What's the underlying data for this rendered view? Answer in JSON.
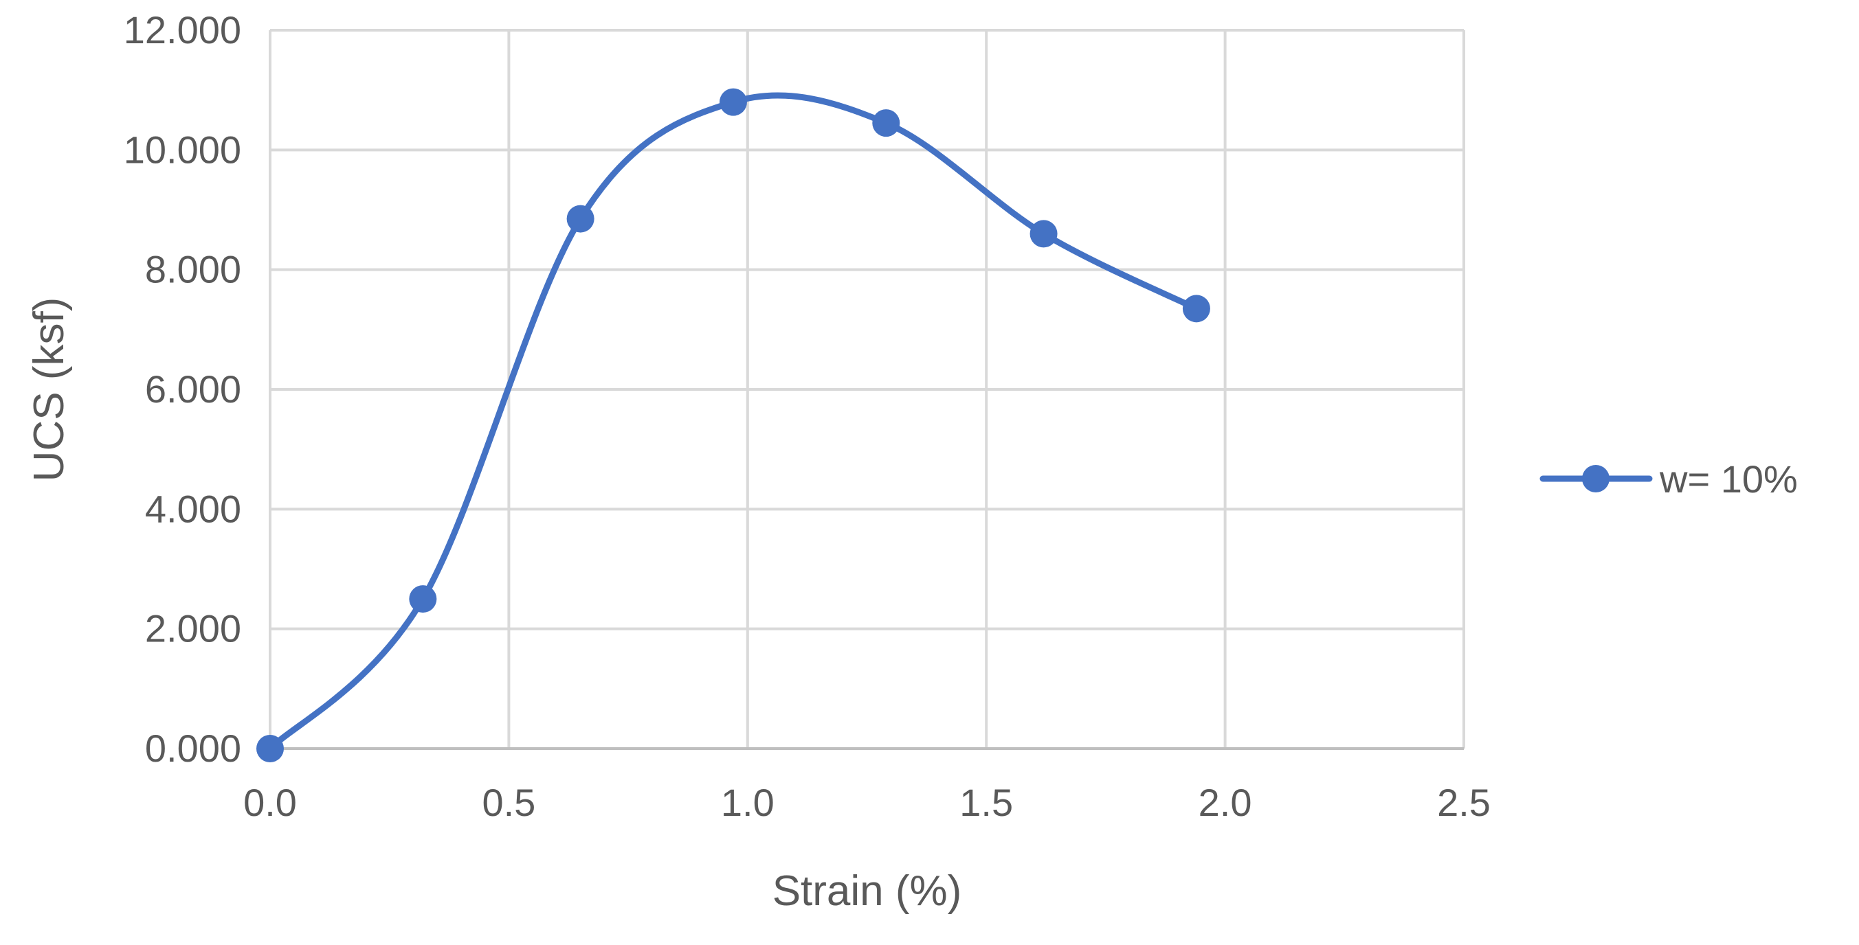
{
  "chart_data": {
    "type": "line",
    "title": "",
    "xlabel": "Strain (%)",
    "ylabel": "UCS (ksf)",
    "xlim": [
      0,
      2.5
    ],
    "ylim": [
      0,
      12
    ],
    "x_ticks": [
      0,
      0.5,
      1.0,
      1.5,
      2.0,
      2.5
    ],
    "x_tick_labels": [
      "0.0",
      "0.5",
      "1.0",
      "1.5",
      "2.0",
      "2.5"
    ],
    "y_ticks": [
      0,
      2,
      4,
      6,
      8,
      10,
      12
    ],
    "y_tick_labels": [
      "0.000",
      "2.000",
      "4.000",
      "6.000",
      "8.000",
      "10.000",
      "12.000"
    ],
    "grid": true,
    "smooth": true,
    "legend_position": "right",
    "series": [
      {
        "name": "w= 10%",
        "color": "#4472C4",
        "marker": "circle",
        "x": [
          0.0,
          0.32,
          0.65,
          0.97,
          1.29,
          1.62,
          1.94
        ],
        "y": [
          0.0,
          2.5,
          8.85,
          10.8,
          10.45,
          8.6,
          7.35
        ]
      }
    ]
  }
}
